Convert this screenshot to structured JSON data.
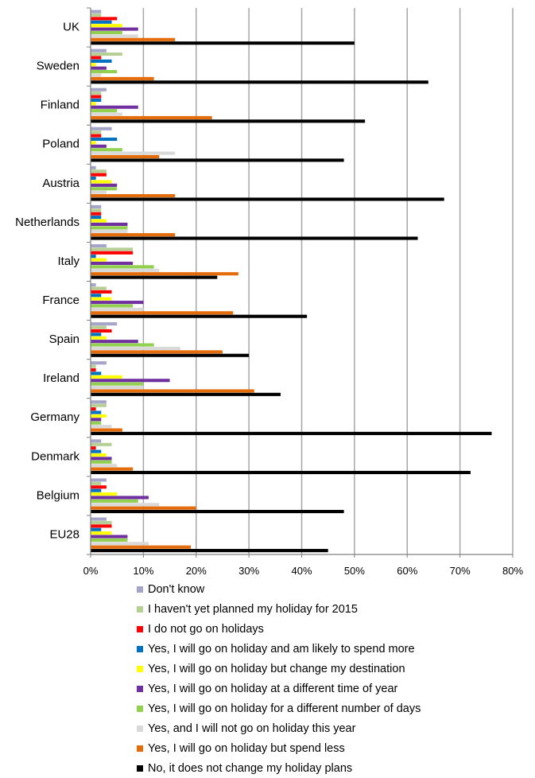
{
  "chart_data": {
    "type": "bar",
    "orientation": "horizontal",
    "title": "",
    "xlabel": "",
    "ylabel": "",
    "xlim": [
      0,
      80
    ],
    "x_ticks": [
      "0%",
      "10%",
      "20%",
      "30%",
      "40%",
      "50%",
      "60%",
      "70%",
      "80%"
    ],
    "grid": true,
    "legend_position": "bottom",
    "categories": [
      "UK",
      "Sweden",
      "Finland",
      "Poland",
      "Austria",
      "Netherlands",
      "Italy",
      "France",
      "Spain",
      "Ireland",
      "Germany",
      "Denmark",
      "Belgium",
      "EU28"
    ],
    "series": [
      {
        "name": "Don't know",
        "color": "#a5a5c9",
        "values": [
          2,
          3,
          3,
          4,
          1,
          2,
          3,
          1,
          5,
          3,
          3,
          2,
          3,
          3
        ]
      },
      {
        "name": "I haven't yet planned my holiday for 2015",
        "color": "#b5cf94",
        "values": [
          2,
          6,
          2,
          2,
          3,
          2,
          8,
          3,
          3,
          1,
          3,
          4,
          2,
          4
        ]
      },
      {
        "name": "I do not go on holidays",
        "color": "#ff0000",
        "values": [
          5,
          2,
          2,
          2,
          3,
          2,
          8,
          4,
          4,
          1,
          1,
          1,
          3,
          4
        ]
      },
      {
        "name": "Yes, I will go on holiday and am likely to spend more",
        "color": "#0070c0",
        "values": [
          4,
          4,
          2,
          5,
          1,
          2,
          1,
          2,
          2,
          2,
          2,
          2,
          2,
          2
        ]
      },
      {
        "name": "Yes, I will go on holiday but change my destination",
        "color": "#ffff00",
        "values": [
          6,
          1,
          1,
          1,
          4,
          3,
          3,
          4,
          3,
          6,
          3,
          3,
          5,
          4
        ]
      },
      {
        "name": "Yes, I will go on holiday at a different time of year",
        "color": "#7030a0",
        "values": [
          9,
          3,
          9,
          3,
          5,
          7,
          8,
          10,
          9,
          15,
          2,
          4,
          11,
          7
        ]
      },
      {
        "name": "Yes, I will go on holiday for a different number of days",
        "color": "#92d050",
        "values": [
          6,
          5,
          5,
          6,
          5,
          7,
          12,
          8,
          12,
          10,
          2,
          4,
          9,
          7
        ]
      },
      {
        "name": "Yes, and I will not go on holiday this year",
        "color": "#d9d9d9",
        "values": [
          9,
          2,
          6,
          16,
          3,
          7,
          13,
          10,
          17,
          10,
          4,
          5,
          13,
          11
        ]
      },
      {
        "name": "Yes, I will go on holiday but spend less",
        "color": "#e46c0a",
        "values": [
          16,
          12,
          23,
          13,
          16,
          16,
          28,
          27,
          25,
          31,
          6,
          8,
          20,
          19
        ]
      },
      {
        "name": "No, it does not change my holiday plans",
        "color": "#000000",
        "values": [
          50,
          64,
          52,
          48,
          67,
          62,
          24,
          41,
          30,
          36,
          76,
          72,
          48,
          45
        ]
      }
    ]
  }
}
